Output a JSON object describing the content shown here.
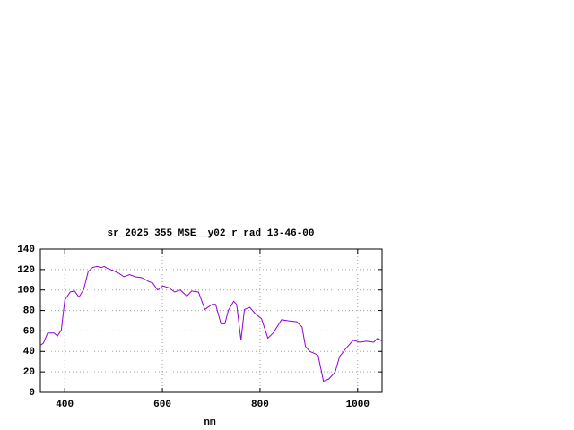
{
  "chart_data": {
    "type": "line",
    "title": "sr_2025_355_MSE__y02_r_rad 13-46-00",
    "x_label": "nm",
    "xlim": [
      350,
      1050
    ],
    "xticks": [
      400,
      600,
      800,
      1000
    ],
    "ylim": [
      0,
      140
    ],
    "yticks": [
      0,
      20,
      40,
      60,
      80,
      100,
      120,
      140
    ],
    "grid": true,
    "series": [
      {
        "color": "#9400d3",
        "x": [
          350,
          356,
          365,
          378,
          385,
          393,
          400,
          411,
          420,
          429,
          439,
          448,
          457,
          466,
          475,
          481,
          488,
          499,
          512,
          521,
          533,
          544,
          558,
          573,
          580,
          590,
          601,
          614,
          625,
          637,
          650,
          660,
          674,
          687,
          702,
          709,
          720,
          728,
          735,
          746,
          752,
          761,
          768,
          779,
          790,
          803,
          816,
          827,
          844,
          857,
          875,
          886,
          893,
          902,
          912,
          919,
          930,
          941,
          954,
          963,
          978,
          991,
          1004,
          1018,
          1033,
          1041,
          1050
        ],
        "values": [
          46,
          48,
          58,
          58,
          55,
          61,
          90,
          98,
          99,
          93,
          101,
          118,
          122,
          123,
          122,
          123,
          121,
          119,
          116,
          113,
          115,
          113,
          112,
          108,
          107,
          100,
          104,
          102,
          98,
          100,
          94,
          99,
          98,
          81,
          86,
          86,
          67,
          67,
          80,
          89,
          86,
          51,
          81,
          83,
          77,
          72,
          53,
          58,
          71,
          70,
          69,
          64,
          45,
          40,
          38,
          36,
          11,
          13,
          20,
          35,
          44,
          51,
          49,
          50,
          49,
          53,
          50
        ]
      }
    ]
  }
}
